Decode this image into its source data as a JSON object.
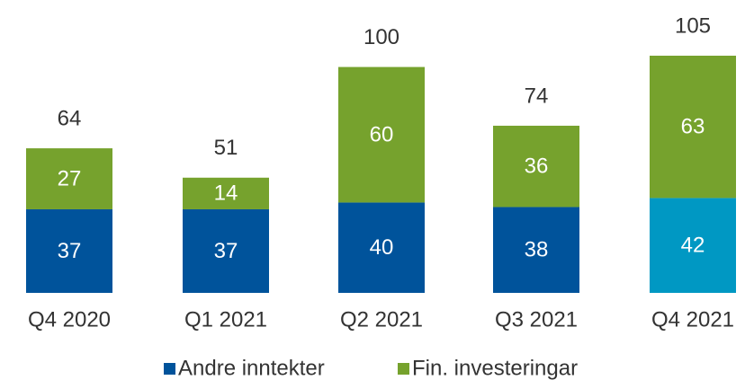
{
  "chart_data": {
    "type": "stacked_bar",
    "categories": [
      "Q4 2020",
      "Q1 2021",
      "Q2 2021",
      "Q3 2021",
      "Q4 2021"
    ],
    "series": [
      {
        "name": "Andre inntekter",
        "color": "#00539b",
        "point_colors": [
          "#00539b",
          "#00539b",
          "#00539b",
          "#00539b",
          "#0098c3"
        ],
        "values": [
          37,
          37,
          40,
          38,
          42
        ]
      },
      {
        "name": "Fin. investeringar",
        "color": "#76a22d",
        "values": [
          27,
          14,
          60,
          36,
          63
        ]
      }
    ],
    "totals": [
      64,
      51,
      100,
      74,
      105
    ]
  }
}
